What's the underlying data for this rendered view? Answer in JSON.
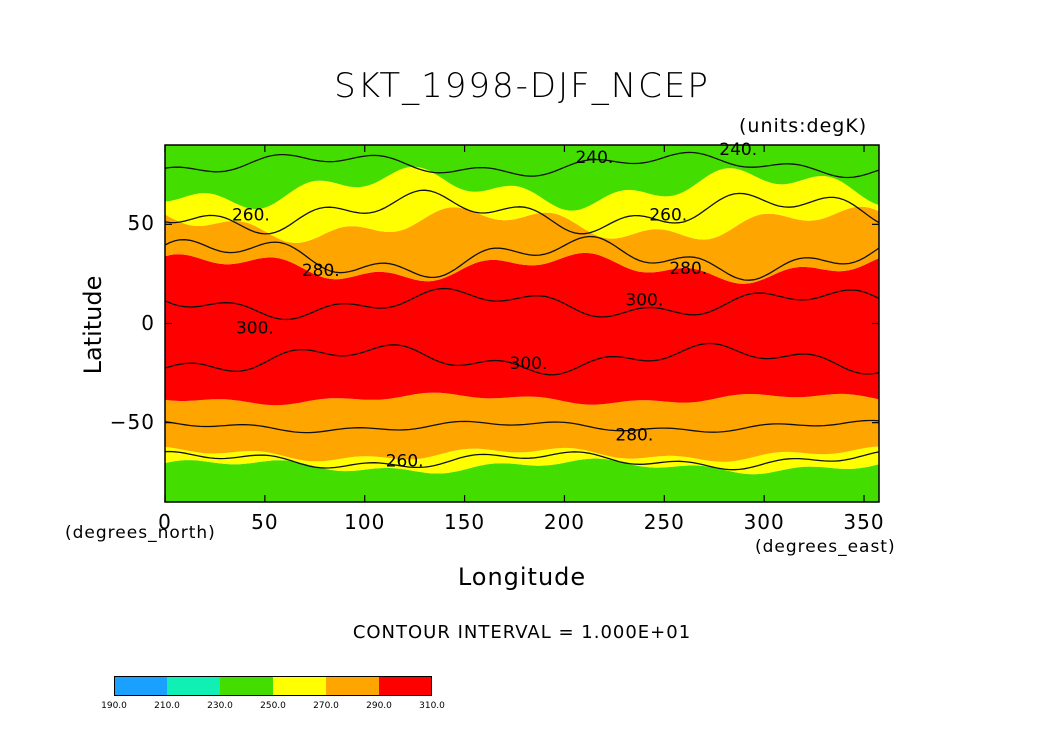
{
  "title": "SKT_1998-DJF_NCEP",
  "units_note": "(units:degK)",
  "contour_interval": "CONTOUR INTERVAL = 1.000E+01",
  "chart_data": {
    "type": "heatmap",
    "title": "SKT_1998-DJF_NCEP",
    "xlabel": "Longitude",
    "ylabel": "Latitude",
    "x_units": "(degrees_east)",
    "y_units": "(degrees_north)",
    "xlim": [
      0,
      357.5
    ],
    "ylim": [
      -90,
      90
    ],
    "x_ticks": [
      0,
      50,
      100,
      150,
      200,
      250,
      300,
      350
    ],
    "y_ticks": [
      -50,
      0,
      50
    ],
    "contour_labels": [
      {
        "lon": 215,
        "lat": 84,
        "text": "240."
      },
      {
        "lon": 287,
        "lat": 88,
        "text": "240."
      },
      {
        "lon": 43,
        "lat": 55,
        "text": "260."
      },
      {
        "lon": 252,
        "lat": 55,
        "text": "260."
      },
      {
        "lon": 78,
        "lat": 27,
        "text": "280."
      },
      {
        "lon": 262,
        "lat": 28,
        "text": "280."
      },
      {
        "lon": 240,
        "lat": 12,
        "text": "300."
      },
      {
        "lon": 45,
        "lat": -2,
        "text": "300."
      },
      {
        "lon": 182,
        "lat": -20,
        "text": "300."
      },
      {
        "lon": 235,
        "lat": -56,
        "text": "280."
      },
      {
        "lon": 120,
        "lat": -69,
        "text": "260."
      }
    ],
    "colorbar": {
      "levels": [
        "190.0",
        "210.0",
        "230.0",
        "250.0",
        "270.0",
        "290.0",
        "310.0"
      ],
      "colors": [
        "#1aa0ff",
        "#10f0b4",
        "#44dd00",
        "#ffff00",
        "#ffa500",
        "#ff0000"
      ]
    },
    "bands": [
      {
        "name": "south-polar",
        "color": "#44dd00"
      },
      {
        "name": "south-subpolar",
        "color": "#ffff00"
      },
      {
        "name": "south-midlat",
        "color": "#ffa500"
      },
      {
        "name": "tropics",
        "color": "#ff0000"
      },
      {
        "name": "north-midlat",
        "color": "#ffa500"
      },
      {
        "name": "north-subpolar",
        "color": "#ffff00"
      },
      {
        "name": "north-polar",
        "color": "#44dd00"
      }
    ]
  }
}
